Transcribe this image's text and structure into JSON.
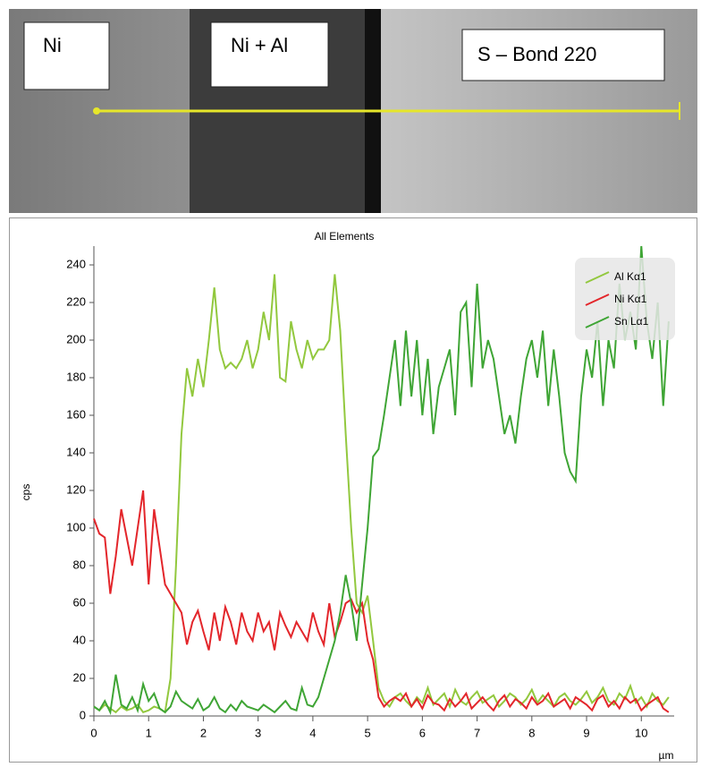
{
  "image_labels": [
    "Ni",
    "Ni + Al",
    "S – Bond 220"
  ],
  "chart_data": {
    "type": "line",
    "title": "All Elements",
    "y_label": "cps",
    "x_label": "µm",
    "xlim": [
      0,
      10.6
    ],
    "xticks": [
      0,
      1,
      2,
      3,
      4,
      5,
      6,
      7,
      8,
      9,
      10
    ],
    "ylim": [
      0,
      250
    ],
    "yticks": [
      0,
      20,
      40,
      60,
      80,
      100,
      120,
      140,
      160,
      180,
      200,
      220,
      240
    ],
    "legend": "top-right",
    "x": [
      0,
      0.1,
      0.2,
      0.3,
      0.4,
      0.5,
      0.6,
      0.7,
      0.8,
      0.9,
      1,
      1.1,
      1.2,
      1.3,
      1.4,
      1.5,
      1.6,
      1.7,
      1.8,
      1.9,
      2,
      2.1,
      2.2,
      2.3,
      2.4,
      2.5,
      2.6,
      2.7,
      2.8,
      2.9,
      3,
      3.1,
      3.2,
      3.3,
      3.4,
      3.5,
      3.6,
      3.7,
      3.8,
      3.9,
      4,
      4.1,
      4.2,
      4.3,
      4.4,
      4.5,
      4.6,
      4.7,
      4.8,
      4.9,
      5,
      5.1,
      5.2,
      5.3,
      5.4,
      5.5,
      5.6,
      5.7,
      5.8,
      5.9,
      6,
      6.1,
      6.2,
      6.3,
      6.4,
      6.5,
      6.6,
      6.7,
      6.8,
      6.9,
      7,
      7.1,
      7.2,
      7.3,
      7.4,
      7.5,
      7.6,
      7.7,
      7.8,
      7.9,
      8,
      8.1,
      8.2,
      8.3,
      8.4,
      8.5,
      8.6,
      8.7,
      8.8,
      8.9,
      9,
      9.1,
      9.2,
      9.3,
      9.4,
      9.5,
      9.6,
      9.7,
      9.8,
      9.9,
      10,
      10.1,
      10.2,
      10.3,
      10.4,
      10.5
    ],
    "series": [
      {
        "name": "Al Kα1",
        "color": "#92c83e",
        "values": [
          5,
          3,
          6,
          4,
          2,
          5,
          3,
          4,
          6,
          2,
          3,
          5,
          4,
          2,
          20,
          80,
          150,
          185,
          170,
          190,
          175,
          200,
          228,
          195,
          185,
          188,
          185,
          190,
          200,
          185,
          195,
          215,
          200,
          235,
          180,
          178,
          210,
          195,
          185,
          200,
          190,
          195,
          195,
          200,
          235,
          205,
          150,
          100,
          60,
          55,
          64,
          40,
          15,
          8,
          5,
          10,
          12,
          8,
          5,
          10,
          7,
          15,
          6,
          9,
          12,
          5,
          14,
          8,
          6,
          10,
          13,
          7,
          9,
          11,
          5,
          8,
          12,
          10,
          6,
          9,
          14,
          7,
          11,
          8,
          5,
          10,
          12,
          8,
          6,
          9,
          13,
          7,
          10,
          15,
          8,
          6,
          12,
          9,
          16,
          7,
          10,
          5,
          12,
          8,
          6,
          10
        ]
      },
      {
        "name": "Ni Kα1",
        "color": "#e3262b",
        "values": [
          105,
          97,
          95,
          65,
          85,
          110,
          95,
          80,
          100,
          120,
          70,
          110,
          90,
          70,
          65,
          60,
          55,
          38,
          50,
          56,
          45,
          35,
          55,
          40,
          58,
          50,
          38,
          55,
          45,
          40,
          55,
          45,
          50,
          35,
          55,
          48,
          42,
          50,
          45,
          40,
          55,
          45,
          38,
          60,
          42,
          50,
          60,
          62,
          55,
          60,
          40,
          30,
          10,
          5,
          8,
          10,
          8,
          12,
          5,
          9,
          4,
          11,
          7,
          6,
          3,
          9,
          5,
          8,
          12,
          4,
          7,
          10,
          6,
          3,
          8,
          11,
          5,
          9,
          7,
          4,
          10,
          6,
          8,
          12,
          5,
          7,
          9,
          4,
          10,
          8,
          6,
          3,
          9,
          11,
          5,
          8,
          4,
          10,
          7,
          9,
          3,
          6,
          8,
          10,
          4,
          2
        ]
      },
      {
        "name": "Sn Lα1",
        "color": "#3fa535",
        "values": [
          5,
          3,
          8,
          2,
          22,
          6,
          4,
          10,
          3,
          17,
          8,
          12,
          4,
          2,
          5,
          13,
          8,
          6,
          4,
          9,
          3,
          5,
          10,
          4,
          2,
          6,
          3,
          8,
          5,
          4,
          3,
          6,
          4,
          2,
          5,
          8,
          4,
          3,
          15,
          6,
          5,
          10,
          20,
          30,
          40,
          55,
          75,
          60,
          40,
          70,
          100,
          138,
          142,
          160,
          180,
          200,
          165,
          205,
          170,
          200,
          160,
          190,
          150,
          175,
          185,
          195,
          160,
          215,
          220,
          175,
          230,
          185,
          200,
          190,
          170,
          150,
          160,
          145,
          170,
          190,
          200,
          180,
          205,
          165,
          195,
          170,
          140,
          130,
          125,
          170,
          195,
          180,
          210,
          165,
          200,
          185,
          230,
          200,
          215,
          195,
          250,
          210,
          190,
          220,
          165,
          210
        ]
      }
    ]
  }
}
